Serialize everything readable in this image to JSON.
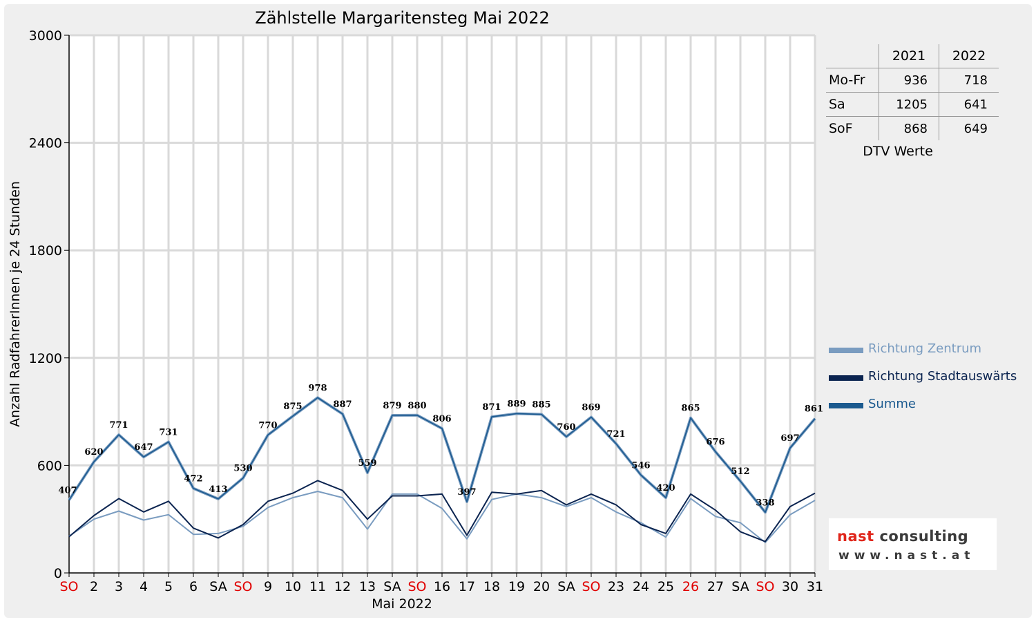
{
  "chart_data": {
    "type": "line",
    "title": "Zählstelle Margaritensteg Mai 2022",
    "xlabel": "Mai 2022",
    "ylabel": "Anzahl RadfahrerInnen je 24 Stunden",
    "ylim": [
      0,
      3000
    ],
    "yticks": [
      0,
      600,
      1200,
      1800,
      2400,
      3000
    ],
    "grid": true,
    "legend_position": "right",
    "categories": [
      "SO",
      "2",
      "3",
      "4",
      "5",
      "6",
      "SA",
      "SO",
      "9",
      "10",
      "11",
      "12",
      "13",
      "SA",
      "SO",
      "16",
      "17",
      "18",
      "19",
      "20",
      "SA",
      "SO",
      "23",
      "24",
      "25",
      "26",
      "27",
      "SA",
      "SO",
      "30",
      "31"
    ],
    "red_ticks": [
      0,
      7,
      14,
      21,
      25,
      28
    ],
    "series": [
      {
        "name": "Richtung Zentrum",
        "color": "#7a9cc0",
        "values": [
          205,
          300,
          345,
          295,
          325,
          215,
          220,
          260,
          365,
          420,
          455,
          420,
          245,
          440,
          440,
          360,
          190,
          410,
          440,
          420,
          370,
          420,
          340,
          280,
          200,
          415,
          315,
          280,
          170,
          325,
          405
        ]
      },
      {
        "name": "Richtung Stadtauswärts",
        "color": "#0b2450",
        "values": [
          202,
          320,
          415,
          340,
          400,
          250,
          195,
          270,
          400,
          445,
          515,
          460,
          300,
          430,
          430,
          440,
          210,
          450,
          440,
          460,
          380,
          440,
          380,
          270,
          220,
          440,
          350,
          230,
          175,
          370,
          445
        ]
      },
      {
        "name": "Summe",
        "color": "#1b5a8f",
        "values": [
          407,
          620,
          771,
          647,
          731,
          472,
          413,
          530,
          770,
          875,
          978,
          887,
          559,
          879,
          880,
          806,
          397,
          871,
          889,
          885,
          760,
          869,
          721,
          546,
          420,
          865,
          676,
          512,
          338,
          697,
          861
        ],
        "labels": [
          "407",
          "620",
          "771",
          "647",
          "731",
          "472",
          "413",
          "530",
          "770",
          "875",
          "978",
          "887",
          "559",
          "879",
          "880",
          "806",
          "397",
          "871",
          "889",
          "885",
          "760",
          "869",
          "721",
          "546",
          "420",
          "865",
          "676",
          "512",
          "338",
          "697",
          "861"
        ]
      }
    ]
  },
  "dtv": {
    "headers": [
      "2021",
      "2022"
    ],
    "rows": [
      {
        "label": "Mo-Fr",
        "v2021": "936",
        "v2022": "718"
      },
      {
        "label": "Sa",
        "v2021": "1205",
        "v2022": "641"
      },
      {
        "label": "SoF",
        "v2021": "868",
        "v2022": "649"
      }
    ],
    "caption": "DTV Werte"
  },
  "legend": [
    {
      "label": "Richtung Zentrum",
      "color": "#7a9cc0"
    },
    {
      "label": "Richtung Stadtauswärts",
      "color": "#0b2450"
    },
    {
      "label": "Summe",
      "color": "#1b5a8f"
    }
  ],
  "logo": {
    "name_prefix": "nast",
    "name_suffix": " consulting",
    "url": "www.nast.at"
  }
}
